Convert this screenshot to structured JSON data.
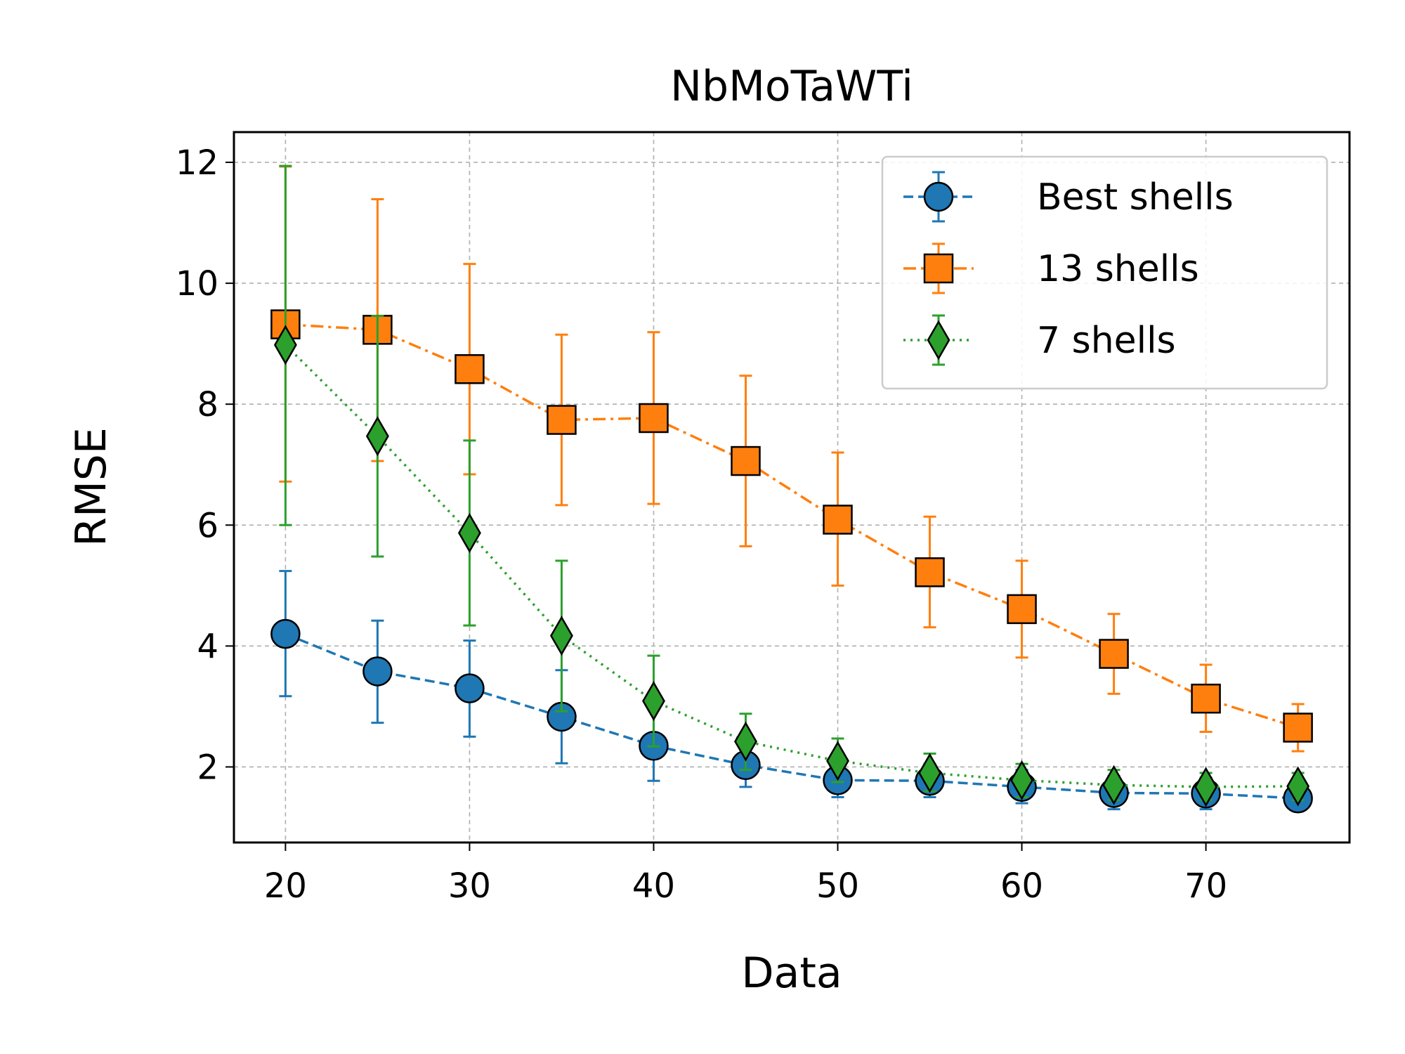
{
  "chart_data": {
    "type": "line",
    "title": "NbMoTaWTi",
    "xlabel": "Data",
    "ylabel": "RMSE",
    "xlim": [
      17.2,
      77.8
    ],
    "ylim": [
      0.75,
      12.5
    ],
    "xticks": [
      20,
      30,
      40,
      50,
      60,
      70
    ],
    "yticks": [
      2,
      4,
      6,
      8,
      10,
      12
    ],
    "grid": true,
    "legend_position": "top-right",
    "x": [
      20,
      25,
      30,
      35,
      40,
      45,
      50,
      55,
      60,
      65,
      70,
      75
    ],
    "series": [
      {
        "name": "Best shells",
        "color": "#1f77b4",
        "marker": "circle",
        "linestyle": "dashed",
        "values": [
          4.2,
          3.58,
          3.3,
          2.83,
          2.35,
          2.03,
          1.78,
          1.77,
          1.67,
          1.57,
          1.56,
          1.48
        ],
        "err_low": [
          3.17,
          2.73,
          2.5,
          2.06,
          1.77,
          1.67,
          1.5,
          1.5,
          1.4,
          1.3,
          1.3,
          1.3
        ],
        "err_high": [
          5.24,
          4.42,
          4.09,
          3.6,
          2.95,
          2.4,
          2.05,
          2.05,
          1.95,
          1.85,
          1.82,
          1.72
        ]
      },
      {
        "name": "13 shells",
        "color": "#ff7f0e",
        "marker": "square",
        "linestyle": "dashdot",
        "values": [
          9.32,
          9.23,
          8.58,
          7.74,
          7.77,
          7.06,
          6.09,
          5.22,
          4.61,
          3.87,
          3.13,
          2.65
        ],
        "err_low": [
          6.72,
          7.06,
          6.84,
          6.33,
          6.35,
          5.65,
          5.0,
          4.31,
          3.81,
          3.21,
          2.58,
          2.26
        ],
        "err_high": [
          11.93,
          11.39,
          10.32,
          9.15,
          9.19,
          8.47,
          7.2,
          6.14,
          5.41,
          4.53,
          3.69,
          3.04
        ]
      },
      {
        "name": "7 shells",
        "color": "#2ca02c",
        "marker": "diamond",
        "linestyle": "dotted",
        "values": [
          8.98,
          7.47,
          5.87,
          4.17,
          3.09,
          2.42,
          2.1,
          1.9,
          1.78,
          1.7,
          1.67,
          1.68
        ],
        "err_low": [
          6.0,
          5.48,
          4.34,
          2.92,
          2.34,
          1.95,
          1.75,
          1.6,
          1.5,
          1.45,
          1.45,
          1.45
        ],
        "err_high": [
          11.94,
          9.46,
          7.4,
          5.41,
          3.84,
          2.88,
          2.47,
          2.22,
          2.05,
          1.95,
          1.9,
          1.9
        ]
      }
    ]
  }
}
